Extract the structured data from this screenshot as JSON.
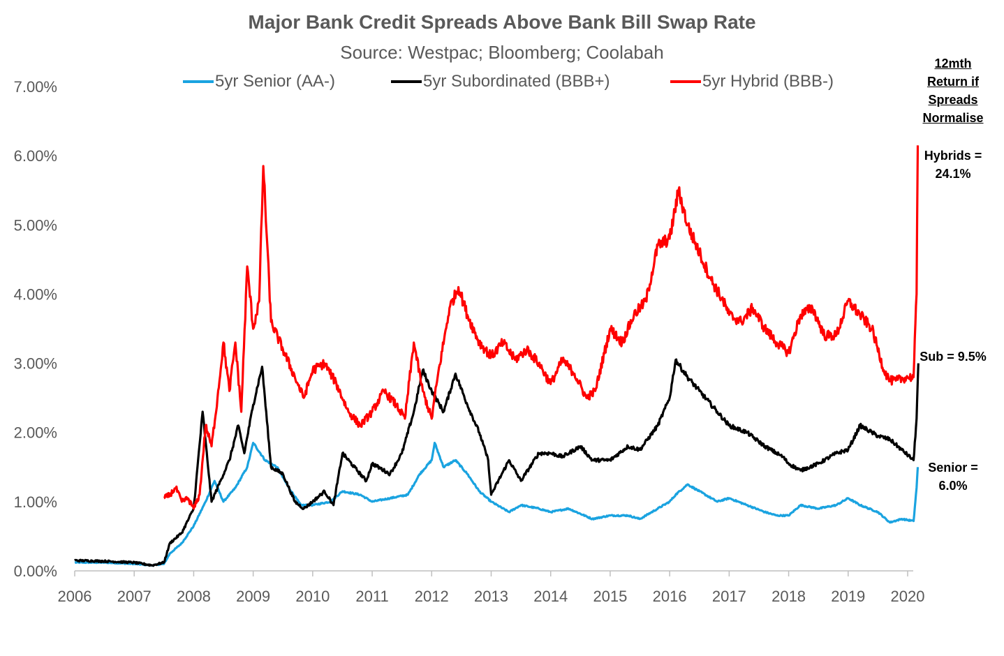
{
  "chart_data": {
    "type": "line",
    "title": "Major Bank Credit Spreads Above Bank Bill Swap Rate",
    "subtitle": "Source: Westpac; Bloomberg; Coolabah",
    "xlabel": "",
    "ylabel": "",
    "xlim": [
      2006,
      2020.2
    ],
    "ylim": [
      0,
      7
    ],
    "x_ticks": [
      "2006",
      "2007",
      "2008",
      "2009",
      "2010",
      "2011",
      "2012",
      "2013",
      "2014",
      "2015",
      "2016",
      "2017",
      "2018",
      "2019",
      "2020"
    ],
    "y_ticks": [
      "0.00%",
      "1.00%",
      "2.00%",
      "3.00%",
      "4.00%",
      "5.00%",
      "6.00%",
      "7.00%"
    ],
    "grid": false,
    "legend_position": "top",
    "series": [
      {
        "name": "5yr Senior (AA-)",
        "color": "#1AA3E0",
        "x": [
          2006.0,
          2006.5,
          2007.0,
          2007.3,
          2007.5,
          2007.6,
          2007.8,
          2008.0,
          2008.2,
          2008.35,
          2008.5,
          2008.7,
          2008.9,
          2009.0,
          2009.2,
          2009.4,
          2009.6,
          2009.8,
          2010.0,
          2010.3,
          2010.5,
          2010.8,
          2011.0,
          2011.3,
          2011.6,
          2011.8,
          2012.0,
          2012.05,
          2012.2,
          2012.4,
          2012.6,
          2012.8,
          2013.0,
          2013.3,
          2013.5,
          2013.8,
          2014.0,
          2014.3,
          2014.7,
          2015.0,
          2015.3,
          2015.5,
          2015.8,
          2016.0,
          2016.1,
          2016.3,
          2016.5,
          2016.8,
          2017.0,
          2017.3,
          2017.6,
          2017.8,
          2018.0,
          2018.2,
          2018.5,
          2018.8,
          2019.0,
          2019.2,
          2019.5,
          2019.7,
          2019.9,
          2020.1,
          2020.15,
          2020.17
        ],
        "values": [
          0.12,
          0.12,
          0.1,
          0.08,
          0.1,
          0.25,
          0.4,
          0.65,
          1.0,
          1.3,
          1.0,
          1.2,
          1.5,
          1.85,
          1.6,
          1.5,
          1.2,
          0.95,
          0.95,
          1.0,
          1.15,
          1.1,
          1.0,
          1.05,
          1.1,
          1.4,
          1.6,
          1.85,
          1.5,
          1.6,
          1.4,
          1.15,
          1.0,
          0.85,
          0.95,
          0.9,
          0.85,
          0.9,
          0.75,
          0.8,
          0.8,
          0.75,
          0.9,
          1.0,
          1.1,
          1.25,
          1.15,
          1.0,
          1.05,
          0.95,
          0.85,
          0.8,
          0.8,
          0.95,
          0.9,
          0.95,
          1.05,
          0.95,
          0.85,
          0.7,
          0.75,
          0.72,
          1.2,
          1.5
        ]
      },
      {
        "name": "5yr Subordinated (BBB+)",
        "color": "#000000",
        "x": [
          2006.0,
          2006.5,
          2007.0,
          2007.3,
          2007.5,
          2007.6,
          2007.8,
          2008.0,
          2008.15,
          2008.3,
          2008.45,
          2008.6,
          2008.75,
          2008.85,
          2009.0,
          2009.15,
          2009.3,
          2009.5,
          2009.7,
          2009.85,
          2010.0,
          2010.2,
          2010.35,
          2010.5,
          2010.7,
          2010.9,
          2011.0,
          2011.3,
          2011.5,
          2011.7,
          2011.85,
          2012.0,
          2012.2,
          2012.4,
          2012.6,
          2012.8,
          2012.95,
          2013.0,
          2013.3,
          2013.5,
          2013.8,
          2014.0,
          2014.2,
          2014.5,
          2014.7,
          2015.0,
          2015.3,
          2015.5,
          2015.8,
          2016.0,
          2016.1,
          2016.3,
          2016.5,
          2016.8,
          2017.0,
          2017.3,
          2017.6,
          2017.9,
          2018.0,
          2018.2,
          2018.5,
          2018.8,
          2019.0,
          2019.2,
          2019.5,
          2019.7,
          2019.9,
          2020.1,
          2020.15,
          2020.18
        ],
        "values": [
          0.15,
          0.14,
          0.12,
          0.08,
          0.12,
          0.4,
          0.55,
          0.9,
          2.3,
          1.0,
          1.3,
          1.6,
          2.1,
          1.7,
          2.4,
          2.95,
          1.5,
          1.4,
          1.0,
          0.9,
          1.0,
          1.15,
          0.95,
          1.7,
          1.5,
          1.3,
          1.55,
          1.4,
          1.7,
          2.3,
          2.9,
          2.6,
          2.3,
          2.85,
          2.4,
          2.0,
          1.6,
          1.1,
          1.6,
          1.3,
          1.7,
          1.7,
          1.65,
          1.8,
          1.6,
          1.6,
          1.8,
          1.75,
          2.1,
          2.5,
          3.05,
          2.8,
          2.6,
          2.3,
          2.1,
          2.0,
          1.8,
          1.65,
          1.55,
          1.45,
          1.55,
          1.7,
          1.75,
          2.1,
          1.95,
          1.9,
          1.75,
          1.6,
          2.2,
          3.0
        ]
      },
      {
        "name": "5yr Hybrid (BBB-)",
        "color": "#FF0000",
        "x": [
          2007.5,
          2007.6,
          2007.7,
          2007.8,
          2007.9,
          2008.0,
          2008.1,
          2008.2,
          2008.3,
          2008.4,
          2008.5,
          2008.6,
          2008.7,
          2008.8,
          2008.9,
          2009.0,
          2009.1,
          2009.17,
          2009.3,
          2009.5,
          2009.7,
          2009.85,
          2010.0,
          2010.2,
          2010.4,
          2010.6,
          2010.8,
          2011.0,
          2011.2,
          2011.4,
          2011.55,
          2011.7,
          2011.85,
          2012.0,
          2012.1,
          2012.3,
          2012.45,
          2012.6,
          2012.8,
          2013.0,
          2013.2,
          2013.4,
          2013.6,
          2013.8,
          2014.0,
          2014.2,
          2014.4,
          2014.6,
          2014.75,
          2015.0,
          2015.2,
          2015.4,
          2015.6,
          2015.8,
          2016.0,
          2016.15,
          2016.3,
          2016.5,
          2016.7,
          2016.9,
          2017.0,
          2017.2,
          2017.4,
          2017.6,
          2017.8,
          2018.0,
          2018.2,
          2018.4,
          2018.6,
          2018.8,
          2019.0,
          2019.2,
          2019.4,
          2019.6,
          2019.7,
          2019.8,
          2020.0,
          2020.1,
          2020.15,
          2020.17
        ],
        "values": [
          1.05,
          1.1,
          1.2,
          1.0,
          1.05,
          0.9,
          1.1,
          2.1,
          1.8,
          2.5,
          3.3,
          2.6,
          3.3,
          2.3,
          4.4,
          3.5,
          3.9,
          5.85,
          3.6,
          3.2,
          2.8,
          2.5,
          2.9,
          3.0,
          2.7,
          2.3,
          2.1,
          2.3,
          2.6,
          2.4,
          2.2,
          3.3,
          2.6,
          2.2,
          2.8,
          3.8,
          4.1,
          3.7,
          3.3,
          3.1,
          3.3,
          3.05,
          3.2,
          3.0,
          2.7,
          3.05,
          2.85,
          2.5,
          2.6,
          3.5,
          3.3,
          3.7,
          3.9,
          4.7,
          4.8,
          5.5,
          5.0,
          4.6,
          4.2,
          3.9,
          3.7,
          3.6,
          3.8,
          3.5,
          3.3,
          3.15,
          3.7,
          3.8,
          3.4,
          3.4,
          3.9,
          3.7,
          3.5,
          2.9,
          2.75,
          2.75,
          2.8,
          2.8,
          4.0,
          6.15
        ]
      }
    ],
    "annotations": {
      "heading": "12mth Return if Spreads Normalise",
      "hybrids": "Hybrids = 24.1%",
      "sub": "Sub  = 9.5%",
      "senior": "Senior = 6.0%"
    }
  }
}
